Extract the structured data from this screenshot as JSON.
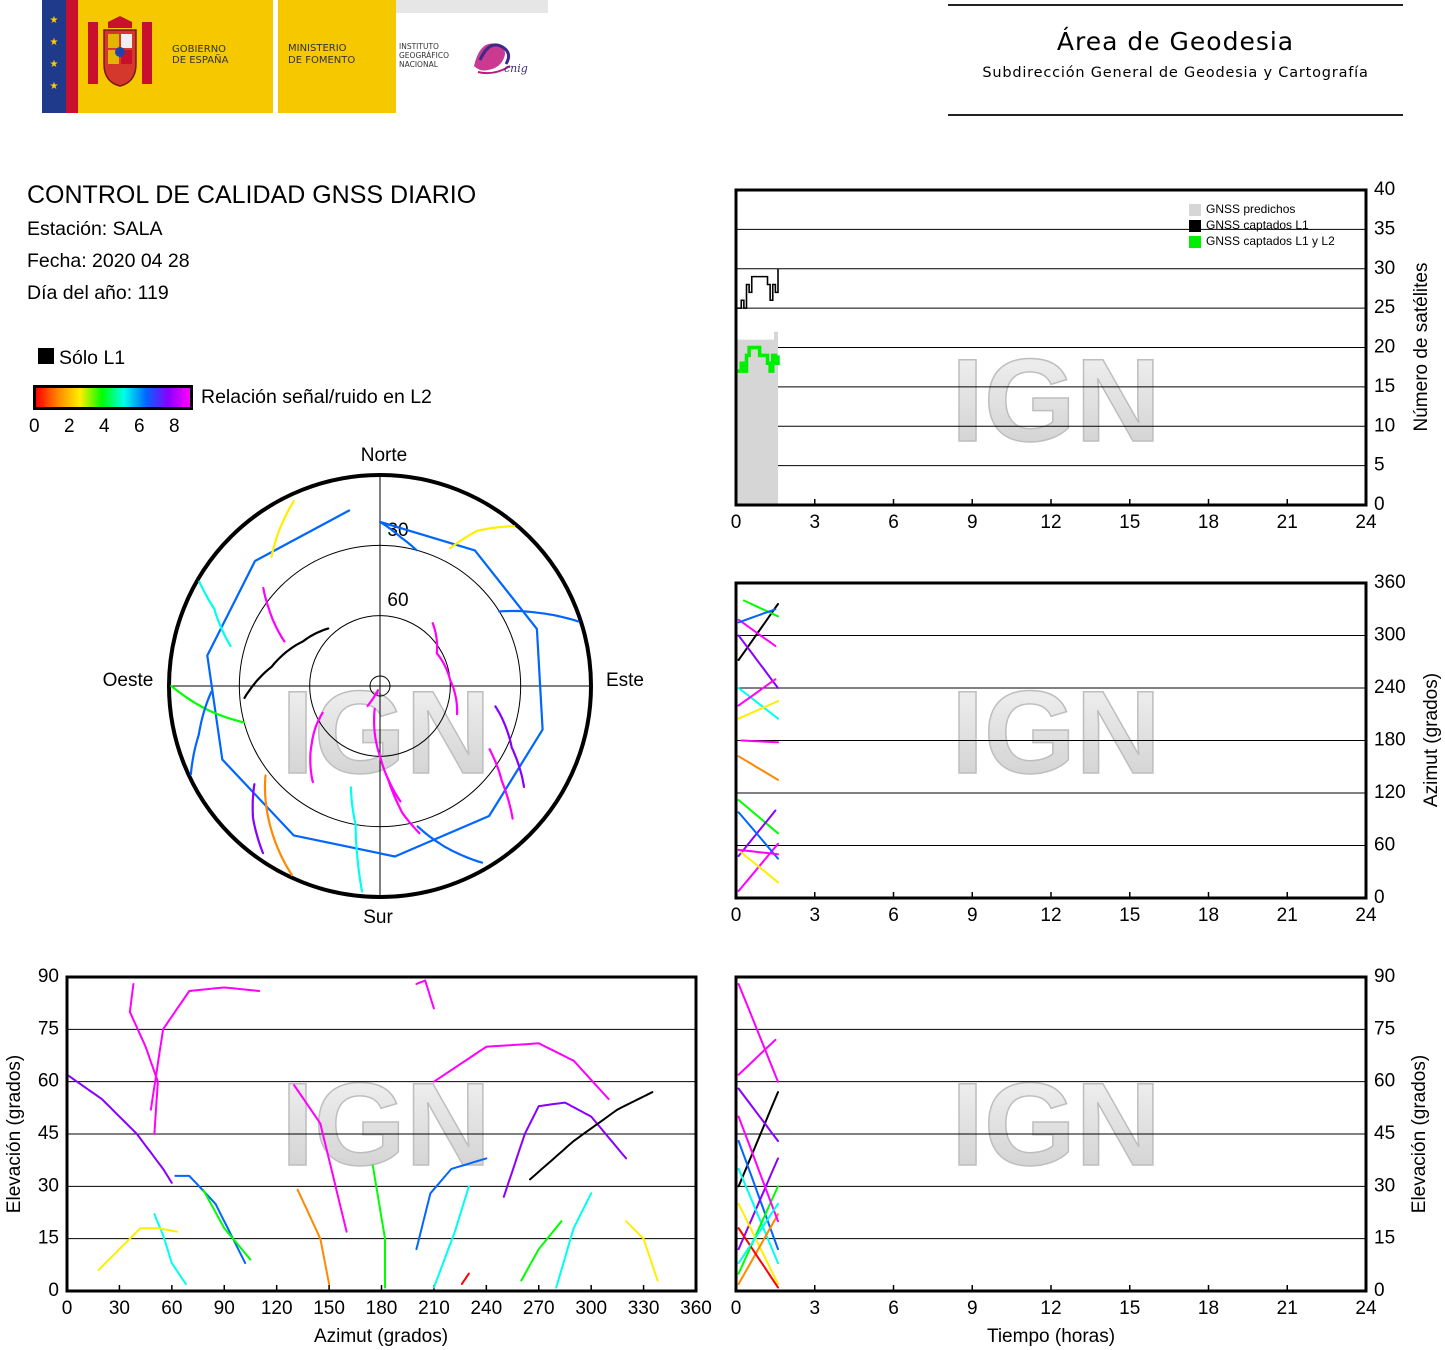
{
  "header": {
    "gov": [
      "GOBIERNO",
      "DE ESPAÑA"
    ],
    "ministry": [
      "MINISTERIO",
      "DE FOMENTO"
    ],
    "institute": [
      "INSTITUTO",
      "GEOGRÁFICO",
      "NACIONAL"
    ],
    "cnig": "cnig",
    "title": "Área de Geodesia",
    "subtitle": "Subdirección General de Geodesia y Cartografía"
  },
  "info": {
    "title": "CONTROL DE CALIDAD GNSS DIARIO",
    "station": "Estación: SALA",
    "date": "Fecha: 2020 04 28",
    "doy": "Día del año: 119",
    "l1_only": "Sólo L1",
    "snr_label": "Relación señal/ruido en L2",
    "snr_ticks": [
      "0",
      "2",
      "4",
      "6",
      "8"
    ]
  },
  "watermark": "IGN",
  "colors": {
    "predicted": "#d6d6d6",
    "l1": "#000000",
    "l1l2": "#00ee00",
    "snr_scale": [
      "#ff0000",
      "#ff8800",
      "#ffee00",
      "#00ff00",
      "#00ffee",
      "#0066ff",
      "#8800ff",
      "#ff00ff"
    ]
  },
  "chart_data": [
    {
      "id": "satellite-count",
      "type": "line",
      "xlim": [
        0,
        24
      ],
      "ylim": [
        0,
        40
      ],
      "xticks": [
        "0",
        "3",
        "6",
        "9",
        "12",
        "15",
        "18",
        "21",
        "24"
      ],
      "yticks": [
        "0",
        "5",
        "10",
        "15",
        "20",
        "25",
        "30",
        "35",
        "40"
      ],
      "ylabel": "Número de satélites",
      "legend": [
        "GNSS predichos",
        "GNSS captados L1",
        "GNSS captados L1 y L2"
      ],
      "legend_position": "top-right",
      "grid": true,
      "series": [
        {
          "name": "GNSS predichos",
          "type": "area",
          "x": [
            0,
            1.6
          ],
          "values": [
            21,
            22
          ]
        },
        {
          "name": "GNSS captados L1",
          "x": [
            0,
            0.2,
            0.3,
            0.4,
            0.5,
            0.6,
            0.7,
            0.8,
            1.0,
            1.2,
            1.3,
            1.4,
            1.5,
            1.6
          ],
          "values": [
            25,
            26,
            25,
            28,
            27,
            29,
            29,
            29,
            29,
            28,
            26,
            28,
            27,
            30
          ]
        },
        {
          "name": "GNSS captados L1 y L2",
          "x": [
            0,
            0.2,
            0.3,
            0.4,
            0.5,
            0.7,
            0.9,
            1.1,
            1.2,
            1.3,
            1.4,
            1.5,
            1.6
          ],
          "values": [
            17,
            18,
            17,
            19,
            20,
            20,
            19,
            19,
            18,
            17,
            19,
            18,
            19
          ]
        }
      ]
    },
    {
      "id": "azimuth-time",
      "type": "scatter",
      "xlim": [
        0,
        24
      ],
      "ylim": [
        0,
        360
      ],
      "xticks": [
        "0",
        "3",
        "6",
        "9",
        "12",
        "15",
        "18",
        "21",
        "24"
      ],
      "yticks": [
        "0",
        "60",
        "120",
        "180",
        "240",
        "300",
        "360"
      ],
      "ylabel": "Azimut (grados)",
      "grid": true,
      "tracks": [
        {
          "x": [
            0.1,
            1.6
          ],
          "values": [
            272,
            336
          ],
          "snr": -1
        },
        {
          "x": [
            0.1,
            1.5
          ],
          "values": [
            318,
            288
          ],
          "snr": 7
        },
        {
          "x": [
            0.1,
            1.6
          ],
          "values": [
            300,
            240
          ],
          "snr": 6
        },
        {
          "x": [
            0.3,
            1.6
          ],
          "values": [
            340,
            322
          ],
          "snr": 3
        },
        {
          "x": [
            0.1,
            1.5
          ],
          "values": [
            315,
            330
          ],
          "snr": 5
        },
        {
          "x": [
            0.1,
            1.6
          ],
          "values": [
            240,
            205
          ],
          "snr": 4
        },
        {
          "x": [
            0.1,
            1.5
          ],
          "values": [
            220,
            250
          ],
          "snr": 8
        },
        {
          "x": [
            0.1,
            1.6
          ],
          "values": [
            205,
            225
          ],
          "snr": 2
        },
        {
          "x": [
            0.2,
            1.6
          ],
          "values": [
            180,
            178
          ],
          "snr": 7
        },
        {
          "x": [
            0.1,
            1.6
          ],
          "values": [
            162,
            135
          ],
          "snr": 1
        },
        {
          "x": [
            0.1,
            1.6
          ],
          "values": [
            112,
            74
          ],
          "snr": 3
        },
        {
          "x": [
            0.1,
            1.5
          ],
          "values": [
            48,
            100
          ],
          "snr": 6
        },
        {
          "x": [
            0.1,
            1.6
          ],
          "values": [
            8,
            62
          ],
          "snr": 8
        },
        {
          "x": [
            0.2,
            1.6
          ],
          "values": [
            52,
            18
          ],
          "snr": 2
        },
        {
          "x": [
            0.1,
            1.6
          ],
          "values": [
            98,
            45
          ],
          "snr": 5
        },
        {
          "x": [
            0.1,
            1.6
          ],
          "values": [
            55,
            50
          ],
          "snr": 7
        }
      ]
    },
    {
      "id": "elevation-azimuth",
      "type": "scatter",
      "xlabel": "Azimut (grados)",
      "ylabel": "Elevación (grados)",
      "xlim": [
        0,
        360
      ],
      "ylim": [
        0,
        90
      ],
      "xticks": [
        "0",
        "30",
        "60",
        "90",
        "120",
        "150",
        "180",
        "210",
        "240",
        "270",
        "300",
        "330",
        "360"
      ],
      "yticks": [
        "0",
        "15",
        "30",
        "45",
        "60",
        "75",
        "90"
      ],
      "grid": true,
      "tracks": [
        {
          "az": [
            0,
            20,
            40,
            55,
            60
          ],
          "el": [
            62,
            55,
            45,
            35,
            31
          ],
          "snr": 6
        },
        {
          "az": [
            38,
            36,
            45,
            52,
            50
          ],
          "el": [
            88,
            80,
            70,
            60,
            45
          ],
          "snr": 7
        },
        {
          "az": [
            48,
            55,
            70,
            90,
            110
          ],
          "el": [
            52,
            75,
            86,
            87,
            86
          ],
          "snr": 8
        },
        {
          "az": [
            50,
            55,
            60,
            68
          ],
          "el": [
            22,
            16,
            8,
            2
          ],
          "snr": 4
        },
        {
          "az": [
            18,
            30,
            42,
            52,
            63
          ],
          "el": [
            6,
            12,
            18,
            18,
            17
          ],
          "snr": 2
        },
        {
          "az": [
            62,
            70,
            85,
            102
          ],
          "el": [
            33,
            33,
            25,
            8
          ],
          "snr": 5
        },
        {
          "az": [
            78,
            90,
            105
          ],
          "el": [
            29,
            18,
            9
          ],
          "snr": 3
        },
        {
          "az": [
            130,
            145,
            160
          ],
          "el": [
            59,
            48,
            17
          ],
          "snr": 8
        },
        {
          "az": [
            132,
            145,
            150
          ],
          "el": [
            29,
            15,
            2
          ],
          "snr": 1
        },
        {
          "az": [
            175,
            182,
            182
          ],
          "el": [
            36,
            15,
            1
          ],
          "snr": 3
        },
        {
          "az": [
            200,
            205,
            210
          ],
          "el": [
            88,
            89,
            81
          ],
          "snr": 8
        },
        {
          "az": [
            210,
            240,
            270,
            290,
            310
          ],
          "el": [
            60,
            70,
            71,
            66,
            55
          ],
          "snr": 7
        },
        {
          "az": [
            200,
            208,
            220,
            240
          ],
          "el": [
            12,
            28,
            35,
            38
          ],
          "snr": 5
        },
        {
          "az": [
            210,
            222,
            230
          ],
          "el": [
            1,
            17,
            30
          ],
          "snr": 4
        },
        {
          "az": [
            250,
            262,
            270,
            285,
            300,
            320
          ],
          "el": [
            27,
            45,
            53,
            54,
            50,
            38
          ],
          "snr": 6
        },
        {
          "az": [
            265,
            290,
            315,
            335
          ],
          "el": [
            32,
            43,
            52,
            57
          ],
          "snr": -1
        },
        {
          "az": [
            260,
            270,
            283
          ],
          "el": [
            3,
            12,
            20
          ],
          "snr": 3
        },
        {
          "az": [
            280,
            290,
            300
          ],
          "el": [
            1,
            18,
            28
          ],
          "snr": 4
        },
        {
          "az": [
            320,
            330,
            338
          ],
          "el": [
            20,
            15,
            3
          ],
          "snr": 2
        },
        {
          "az": [
            226,
            230
          ],
          "el": [
            2,
            5
          ],
          "snr": 0
        }
      ]
    },
    {
      "id": "elevation-time",
      "type": "scatter",
      "xlabel": "Tiempo (horas)",
      "ylabel": "Elevación (grados)",
      "xlim": [
        0,
        24
      ],
      "ylim": [
        0,
        90
      ],
      "xticks": [
        "0",
        "3",
        "6",
        "9",
        "12",
        "15",
        "18",
        "21",
        "24"
      ],
      "yticks": [
        "0",
        "15",
        "30",
        "45",
        "60",
        "75",
        "90"
      ],
      "grid": true,
      "tracks": [
        {
          "x": [
            0.1,
            1.6
          ],
          "values": [
            88,
            60
          ],
          "snr": 8
        },
        {
          "x": [
            0.1,
            1.5
          ],
          "values": [
            62,
            72
          ],
          "snr": 7
        },
        {
          "x": [
            0.1,
            1.6
          ],
          "values": [
            30,
            57
          ],
          "snr": -1
        },
        {
          "x": [
            0.1,
            1.6
          ],
          "values": [
            58,
            43
          ],
          "snr": 6
        },
        {
          "x": [
            0.1,
            1.6
          ],
          "values": [
            43,
            12
          ],
          "snr": 5
        },
        {
          "x": [
            0.1,
            1.6
          ],
          "values": [
            12,
            38
          ],
          "snr": 6
        },
        {
          "x": [
            0.1,
            1.6
          ],
          "values": [
            35,
            8
          ],
          "snr": 4
        },
        {
          "x": [
            0.1,
            1.6
          ],
          "values": [
            5,
            30
          ],
          "snr": 3
        },
        {
          "x": [
            0.1,
            1.6
          ],
          "values": [
            25,
            2
          ],
          "snr": 2
        },
        {
          "x": [
            0.1,
            1.6
          ],
          "values": [
            2,
            22
          ],
          "snr": 1
        },
        {
          "x": [
            0.1,
            1.6
          ],
          "values": [
            18,
            1
          ],
          "snr": 0
        },
        {
          "x": [
            0.1,
            1.6
          ],
          "values": [
            50,
            20
          ],
          "snr": 8
        },
        {
          "x": [
            0.1,
            1.6
          ],
          "values": [
            8,
            25
          ],
          "snr": 4
        }
      ]
    },
    {
      "id": "skyplot",
      "type": "scatter",
      "labels": {
        "north": "Norte",
        "south": "Sur",
        "east": "Este",
        "west": "Oeste"
      },
      "rings": [
        "30",
        "60"
      ],
      "tracks": [
        {
          "az": [
            265,
            280,
            300,
            318
          ],
          "el": [
            32,
            43,
            52,
            57
          ],
          "snr": -1
        },
        {
          "az": [
            200,
            206,
            212
          ],
          "el": [
            86,
            88,
            80
          ],
          "snr": 8
        },
        {
          "az": [
            40,
            60,
            85,
            110
          ],
          "el": [
            55,
            62,
            60,
            55
          ],
          "snr": 8
        },
        {
          "az": [
            350,
            0,
            8,
            15
          ],
          "el": [
            14,
            20,
            26,
            30
          ],
          "snr": 5
        },
        {
          "az": [
            335,
            328,
            320
          ],
          "el": [
            3,
            10,
            18
          ],
          "snr": 2
        },
        {
          "az": [
            300,
            295,
            285
          ],
          "el": [
            1,
            12,
            24
          ],
          "snr": 4
        },
        {
          "az": [
            270,
            262,
            255
          ],
          "el": [
            1,
            16,
            30
          ],
          "snr": 3
        },
        {
          "az": [
            40,
            32,
            27
          ],
          "el": [
            1,
            12,
            24
          ],
          "snr": 2
        },
        {
          "az": [
            72,
            65,
            58
          ],
          "el": [
            1,
            16,
            30
          ],
          "snr": 5
        },
        {
          "az": [
            100,
            115,
            125
          ],
          "el": [
            40,
            28,
            15
          ],
          "snr": 6
        },
        {
          "az": [
            120,
            128,
            135
          ],
          "el": [
            36,
            24,
            10
          ],
          "snr": 7
        },
        {
          "az": [
            165,
            170,
            175
          ],
          "el": [
            25,
            35,
            50
          ],
          "snr": 8
        },
        {
          "az": [
            185,
            190,
            196
          ],
          "el": [
            2,
            30,
            45
          ],
          "snr": 4
        },
        {
          "az": [
            150,
            158,
            165
          ],
          "el": [
            3,
            16,
            28
          ],
          "snr": 5
        },
        {
          "az": [
            205,
            220,
            232
          ],
          "el": [
            1,
            16,
            28
          ],
          "snr": 1
        },
        {
          "az": [
            215,
            224,
            232
          ],
          "el": [
            3,
            12,
            22
          ],
          "snr": 6
        },
        {
          "az": [
            245,
            255,
            268
          ],
          "el": [
            1,
            10,
            18
          ],
          "snr": 5
        },
        {
          "az": [
            295,
            305,
            310
          ],
          "el": [
            45,
            32,
            25
          ],
          "snr": 8
        },
        {
          "az": [
            170,
            180,
            193
          ],
          "el": [
            40,
            60,
            80
          ],
          "snr": 7
        },
        {
          "az": [
            215,
            230,
            245
          ],
          "el": [
            40,
            52,
            63
          ],
          "snr": 8
        }
      ]
    }
  ]
}
